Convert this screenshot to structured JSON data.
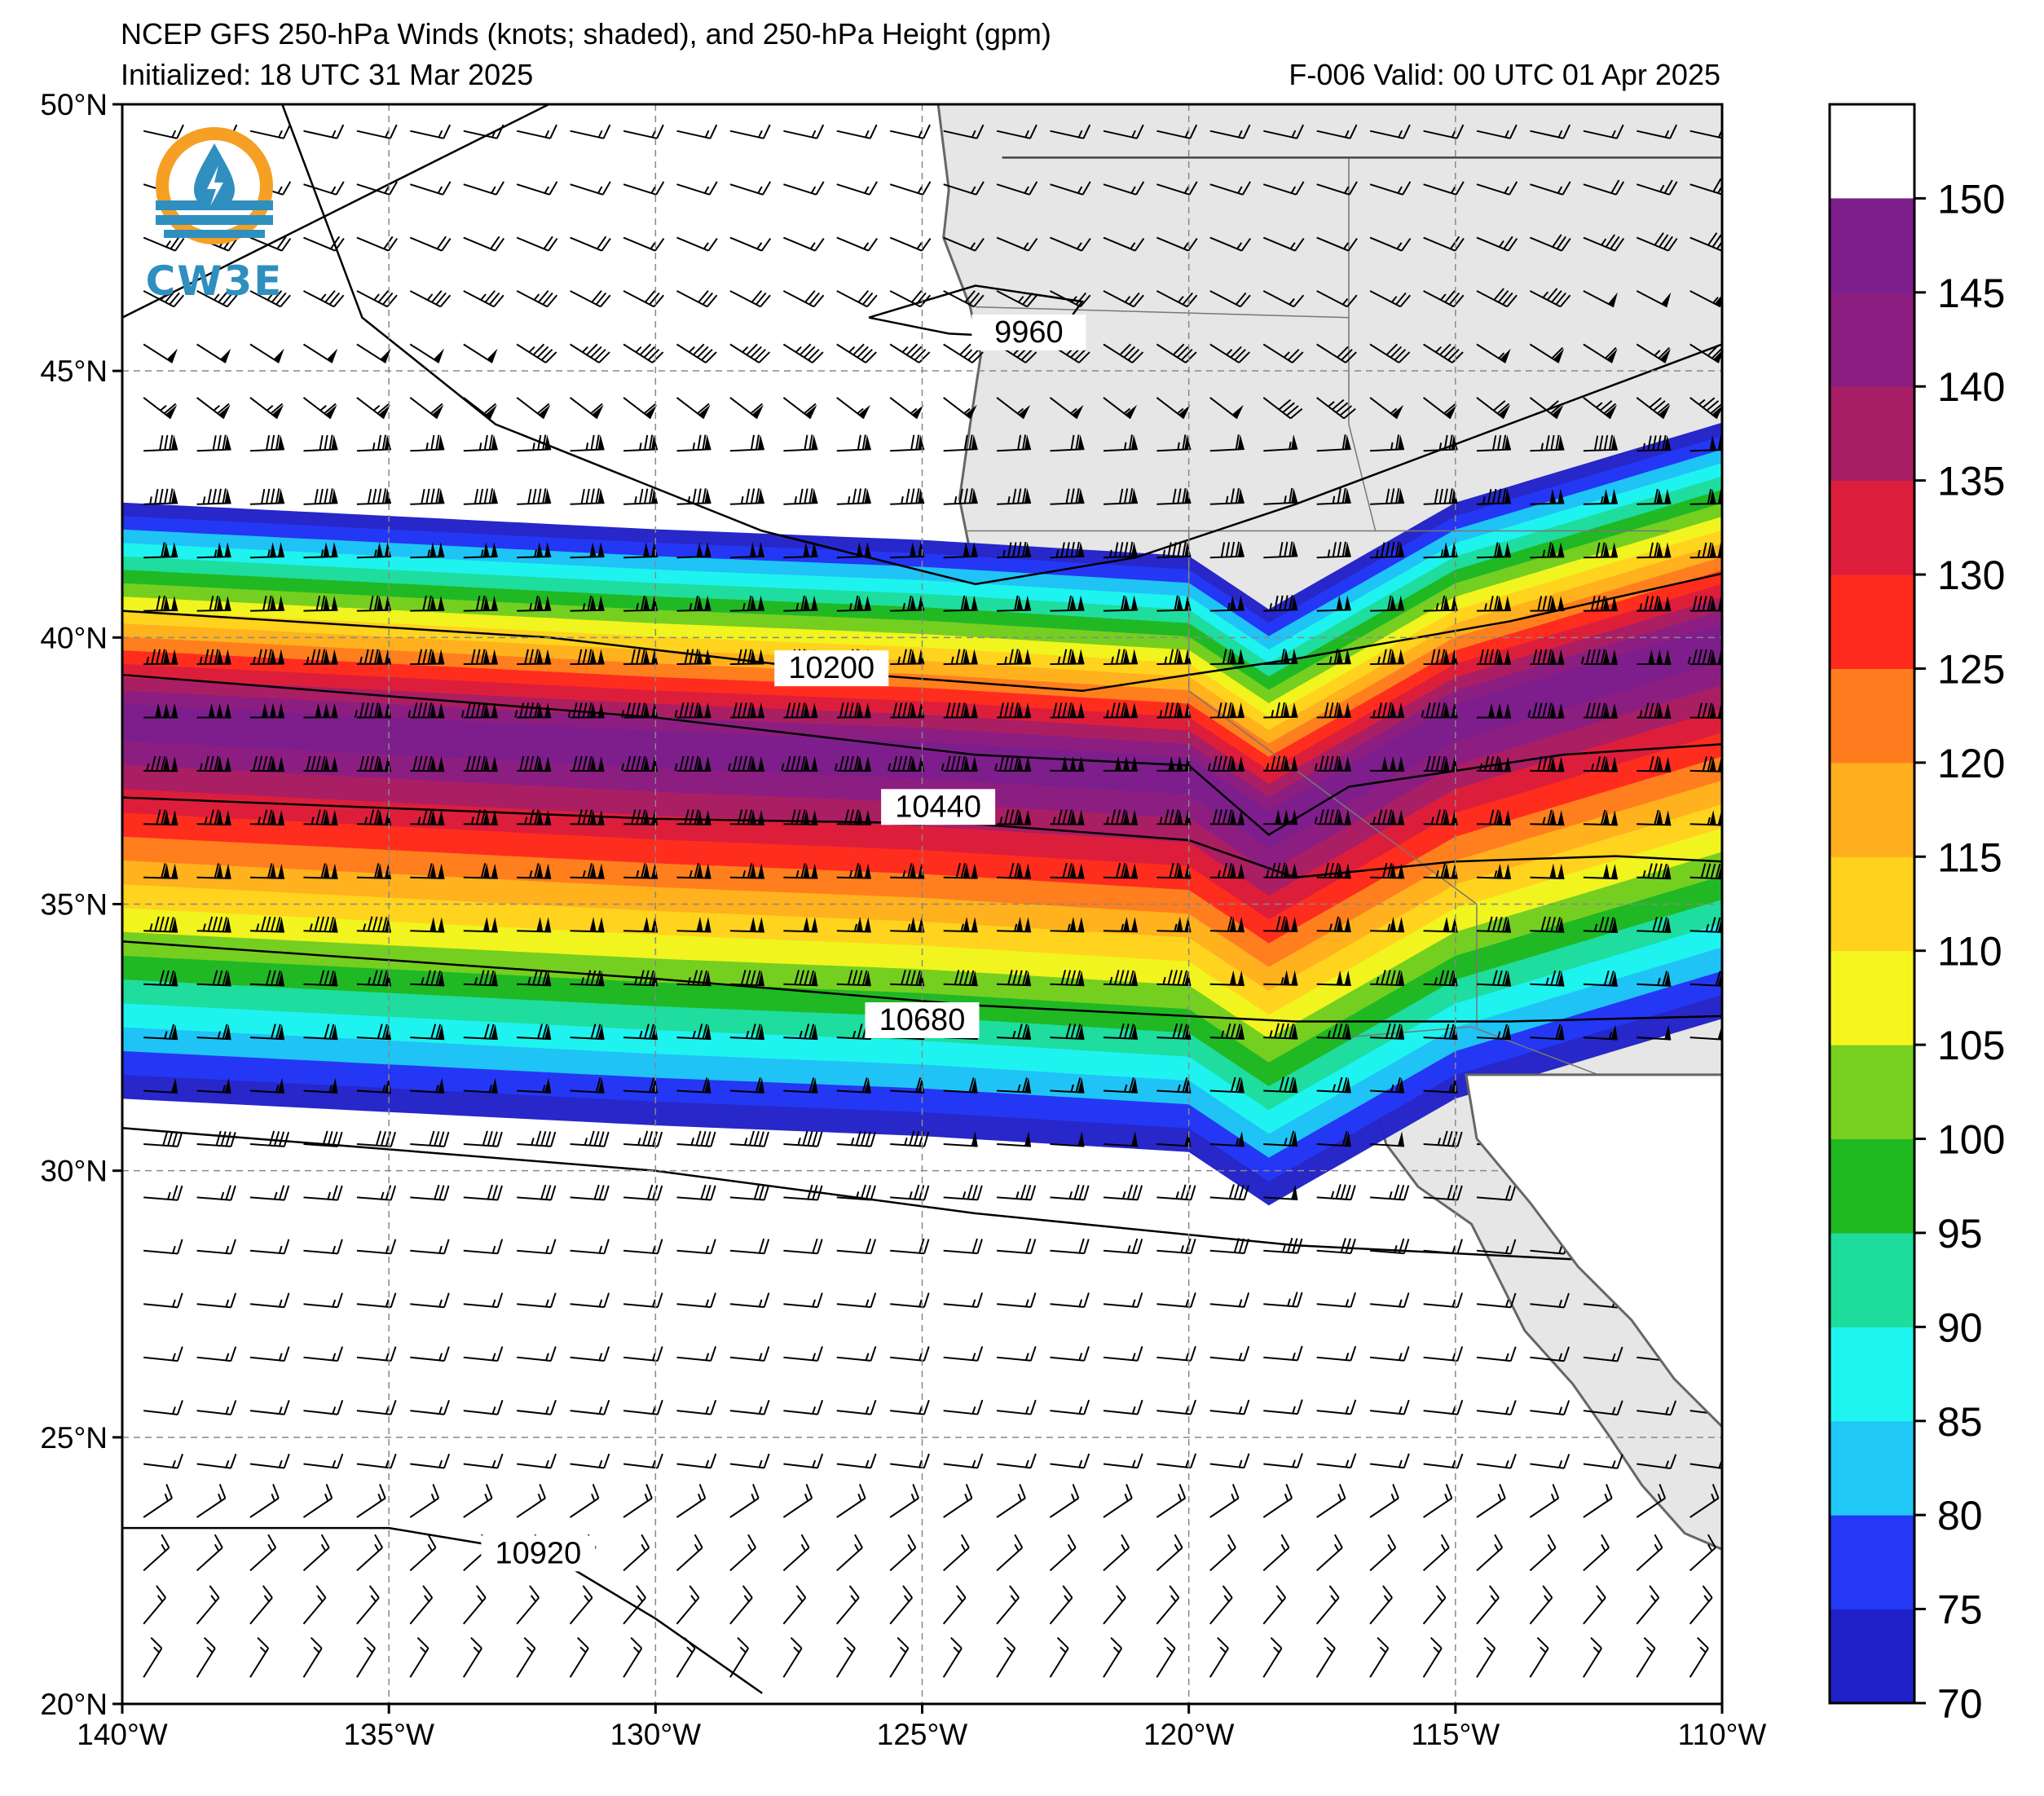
{
  "title": {
    "line1": "NCEP GFS 250-hPa Winds (knots; shaded), and 250-hPa Height (gpm)",
    "line2": "Initialized: 18 UTC 31 Mar 2025",
    "line3": "F-006  Valid: 00 UTC 01 Apr 2025"
  },
  "logo": {
    "text": "CW3E",
    "icon": "water-drop-sun-logo-icon"
  },
  "chart_data": {
    "type": "heatmap",
    "map": {
      "lon_range": [
        -140,
        -110
      ],
      "lat_range": [
        20,
        50
      ],
      "lon_ticks": [
        -140,
        -135,
        -130,
        -125,
        -120,
        -115,
        -110
      ],
      "lon_tick_labels": [
        "140°W",
        "135°W",
        "130°W",
        "125°W",
        "120°W",
        "115°W",
        "110°W"
      ],
      "lat_ticks": [
        20,
        25,
        30,
        35,
        40,
        45,
        50
      ],
      "lat_tick_labels": [
        "20°N",
        "25°N",
        "30°N",
        "35°N",
        "40°N",
        "45°N",
        "50°N"
      ],
      "grid": "dashed",
      "land_color": "#e6e6e6"
    },
    "colorbar": {
      "levels": [
        70,
        75,
        80,
        85,
        90,
        95,
        100,
        105,
        110,
        115,
        120,
        125,
        130,
        135,
        140,
        145,
        150,
        155
      ],
      "tick_labels": [
        "70",
        "75",
        "80",
        "85",
        "90",
        "95",
        "100",
        "105",
        "110",
        "115",
        "120",
        "125",
        "130",
        "135",
        "140",
        "145",
        "150"
      ],
      "colors": [
        "#2020c8",
        "#2438f5",
        "#20c8f5",
        "#1ef5f0",
        "#1edc9c",
        "#20b820",
        "#78d020",
        "#f5f51e",
        "#ffd21e",
        "#ffaf1e",
        "#ff7d1e",
        "#ff2a1e",
        "#dc1e3c",
        "#a81e64",
        "#8c1e82",
        "#7d1e8c"
      ],
      "placement": "right"
    },
    "jet_core": {
      "description_values_knots": {
        "max": 155,
        "min_shaded": 70
      },
      "axis_lat_at_lon": [
        [
          -140,
          38.5
        ],
        [
          -130,
          38.0
        ],
        [
          -125,
          37.8
        ],
        [
          -120,
          37.5
        ],
        [
          -118.5,
          36.5
        ],
        [
          -115,
          38.5
        ],
        [
          -110,
          40.0
        ]
      ],
      "width_deg_full": 13
    },
    "height_contours": [
      {
        "value": 9960,
        "label": "9960",
        "label_lon": -123.0,
        "label_lat": 45.6
      },
      {
        "value": 10200,
        "label": "10200",
        "label_lon": -126.7,
        "label_lat": 39.3
      },
      {
        "value": 10440,
        "label": "10440",
        "label_lon": -124.7,
        "label_lat": 36.7
      },
      {
        "value": 10680,
        "label": "10680",
        "label_lon": -125.0,
        "label_lat": 32.7
      },
      {
        "value": 10920,
        "label": "10920",
        "label_lon": -132.2,
        "label_lat": 22.7
      }
    ],
    "wind_barbs": {
      "spacing_deg": 1.0,
      "units": "knots"
    }
  }
}
